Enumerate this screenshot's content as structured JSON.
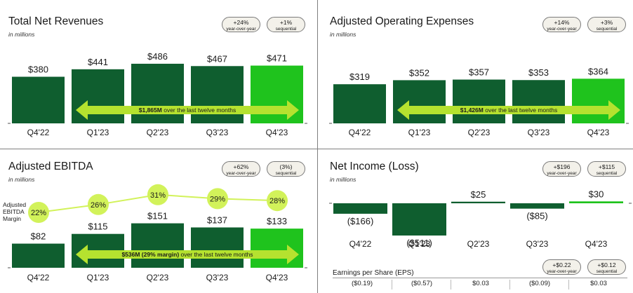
{
  "colors": {
    "dark_green": "#0f5e2f",
    "bright_green": "#1fc31d",
    "lime": "#b5e22f",
    "lime_circle": "#d2f25a",
    "badge_bg": "#f3f1ea"
  },
  "panels": {
    "revenues": {
      "title": "Total Net Revenues",
      "unit": "in millions",
      "badges": [
        {
          "value": "+24%",
          "label": "year-over-year"
        },
        {
          "value": "+1%",
          "label": "sequential"
        }
      ],
      "ttm_bold": "$1,865M",
      "ttm_rest": " over the last twelve months"
    },
    "opex": {
      "title": "Adjusted Operating Expenses",
      "unit": "in millions",
      "badges": [
        {
          "value": "+14%",
          "label": "year-over-year"
        },
        {
          "value": "+3%",
          "label": "sequential"
        }
      ],
      "ttm_bold": "$1,426M",
      "ttm_rest": " over the last twelve months"
    },
    "ebitda": {
      "title": "Adjusted EBITDA",
      "unit": "in millions",
      "badges": [
        {
          "value": "+62%",
          "label": "year-over-year"
        },
        {
          "value": "(3%)",
          "label": "sequential"
        }
      ],
      "ttm_bold": "$536M (29% margin)",
      "ttm_rest": " over the last twelve months",
      "margin_label_1": "Adjusted",
      "margin_label_2": "EBITDA",
      "margin_label_3": "Margin"
    },
    "net_income": {
      "title": "Net Income (Loss)",
      "unit": "in millions",
      "badges": [
        {
          "value": "+$196",
          "label": "year-over-year"
        },
        {
          "value": "+$115",
          "label": "sequential"
        }
      ],
      "eps_badges": [
        {
          "value": "+$0.22",
          "label": "year-over-year"
        },
        {
          "value": "+$0.12",
          "label": "sequential"
        }
      ],
      "eps_label": "Earnings per Share (EPS)",
      "eps_values": [
        "($0.19)",
        "($0.57)",
        "$0.03",
        "($0.09)",
        "$0.03"
      ]
    }
  },
  "chart_data": [
    {
      "type": "bar",
      "title": "Total Net Revenues",
      "categories": [
        "Q4'22",
        "Q1'23",
        "Q2'23",
        "Q3'23",
        "Q4'23"
      ],
      "values": [
        380,
        441,
        486,
        467,
        471
      ],
      "value_labels": [
        "$380",
        "$441",
        "$486",
        "$467",
        "$471"
      ]
    },
    {
      "type": "bar",
      "title": "Adjusted Operating Expenses",
      "categories": [
        "Q4'22",
        "Q1'23",
        "Q2'23",
        "Q3'23",
        "Q4'23"
      ],
      "values": [
        319,
        352,
        357,
        353,
        364
      ],
      "value_labels": [
        "$319",
        "$352",
        "$357",
        "$353",
        "$364"
      ]
    },
    {
      "type": "bar",
      "title": "Adjusted EBITDA",
      "categories": [
        "Q4'22",
        "Q1'23",
        "Q2'23",
        "Q3'23",
        "Q4'23"
      ],
      "values": [
        82,
        115,
        151,
        137,
        133
      ],
      "value_labels": [
        "$82",
        "$115",
        "$151",
        "$137",
        "$133"
      ],
      "series": [
        {
          "name": "Adjusted EBITDA Margin",
          "values": [
            22,
            26,
            31,
            29,
            28
          ],
          "labels": [
            "22%",
            "26%",
            "31%",
            "29%",
            "28%"
          ]
        }
      ]
    },
    {
      "type": "bar",
      "title": "Net Income (Loss)",
      "categories": [
        "Q4'22",
        "Q1'23",
        "Q2'23",
        "Q3'23",
        "Q4'23"
      ],
      "values": [
        -166,
        -511,
        25,
        -85,
        30
      ],
      "value_labels": [
        "($166)",
        "($511)",
        "$25",
        "($85)",
        "$30"
      ]
    }
  ]
}
